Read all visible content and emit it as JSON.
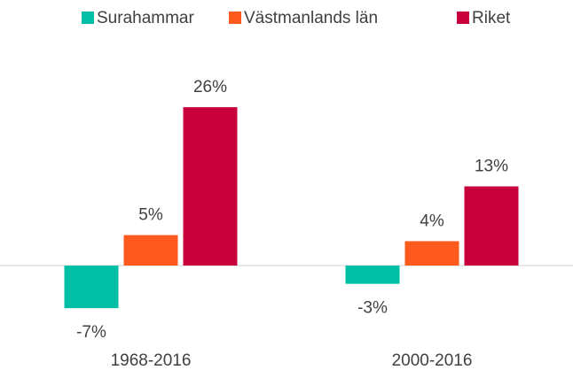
{
  "chart_data": {
    "type": "bar",
    "categories": [
      "1968-2016",
      "2000-2016"
    ],
    "series": [
      {
        "name": "Surahammar",
        "color": "#00bfa5",
        "values": [
          -7,
          -3
        ],
        "value_labels": [
          "-7%",
          "-3%"
        ]
      },
      {
        "name": "Västmanlands län",
        "color": "#ff5a1e",
        "values": [
          5,
          4
        ],
        "value_labels": [
          "5%",
          "4%"
        ]
      },
      {
        "name": "Riket",
        "color": "#c8003c",
        "values": [
          26,
          13
        ],
        "value_labels": [
          "26%",
          "13%"
        ]
      }
    ],
    "legend": "top"
  }
}
